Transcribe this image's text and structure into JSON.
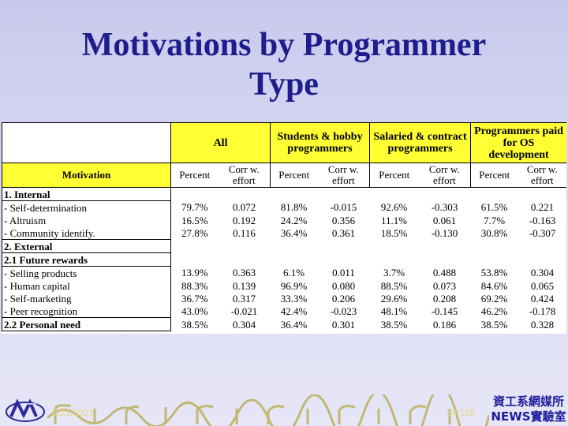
{
  "slide": {
    "title_line1": "Motivations by Programmer",
    "title_line2": "Type",
    "date": "2/21/2021",
    "page": "34/118",
    "institute_line1": "資工系網媒所",
    "institute_line2": "NEWS實驗室",
    "colors": {
      "title": "#1d1d8c",
      "highlight": "#ffff33",
      "background": "#d4d4f2"
    }
  },
  "table": {
    "groups": [
      "All",
      "Students & hobby programmers",
      "Salaried & contract programmers",
      "Programmers paid for OS development"
    ],
    "motivation_header": "Motivation",
    "sub_headers": [
      "Percent",
      "Corr w. effort"
    ],
    "rows": [
      {
        "label": "1. Internal",
        "section": true
      },
      {
        "label": "- Self-determination",
        "values": [
          "79.7%",
          "0.072",
          "81.8%",
          "-0.015",
          "92.6%",
          "-0.303",
          "61.5%",
          "0.221"
        ]
      },
      {
        "label": "- Altruism",
        "values": [
          "16.5%",
          "0.192",
          "24.2%",
          "0.356",
          "11.1%",
          "0.061",
          "7.7%",
          "-0.163"
        ]
      },
      {
        "label": "- Community identify.",
        "values": [
          "27.8%",
          "0.116",
          "36.4%",
          "0.361",
          "18.5%",
          "-0.130",
          "30.8%",
          "-0.307"
        ]
      },
      {
        "label": "2. External",
        "section": true
      },
      {
        "label": "2.1 Future rewards",
        "section": true
      },
      {
        "label": "- Selling products",
        "values": [
          "13.9%",
          "0.363",
          "6.1%",
          "0.011",
          "3.7%",
          "0.488",
          "53.8%",
          "0.304"
        ]
      },
      {
        "label": "- Human capital",
        "values": [
          "88.3%",
          "0.139",
          "96.9%",
          "0.080",
          "88.5%",
          "0.073",
          "84.6%",
          "0.065"
        ]
      },
      {
        "label": "- Self-marketing",
        "values": [
          "36.7%",
          "0.317",
          "33.3%",
          "0.206",
          "29.6%",
          "0.208",
          "69.2%",
          "0.424"
        ]
      },
      {
        "label": "- Peer recognition",
        "values": [
          "43.0%",
          "-0.021",
          "42.4%",
          "-0.023",
          "48.1%",
          "-0.145",
          "46.2%",
          "-0.178"
        ]
      },
      {
        "label": "2.2 Personal need",
        "section": true,
        "values": [
          "38.5%",
          "0.304",
          "36.4%",
          "0.301",
          "38.5%",
          "0.186",
          "38.5%",
          "0.328"
        ]
      }
    ]
  }
}
